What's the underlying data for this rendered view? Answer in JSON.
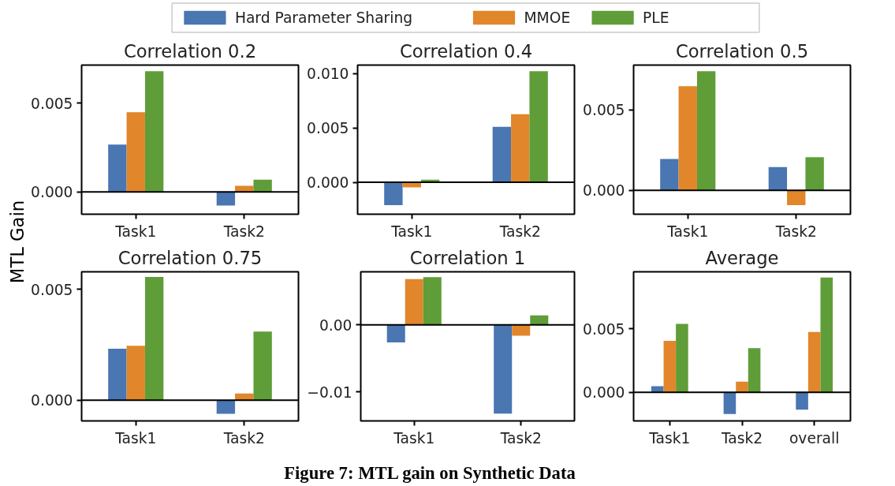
{
  "chart_data": [
    {
      "type": "bar",
      "title": "Correlation 0.2",
      "ylabel": "MTL Gain",
      "legend": "top",
      "annotations": [
        "Figure 7: MTL gain on Synthetic Data"
      ],
      "categories": [
        "Task1",
        "Task2"
      ],
      "ylim": [
        -0.00126,
        0.00714
      ],
      "yticks": [
        {
          "value": 0.0,
          "label": "0.000"
        },
        {
          "value": 0.005,
          "label": "0.005"
        }
      ],
      "ref_lines": [
        {
          "axis": "y",
          "value": 0,
          "color": "#000000"
        }
      ],
      "grid": false,
      "series": [
        {
          "name": "Hard Parameter Sharing",
          "color": "#4a76b2",
          "values": [
            0.00266,
            -0.00077
          ]
        },
        {
          "name": "MMOE",
          "color": "#e1862b",
          "values": [
            0.00448,
            0.00034
          ]
        },
        {
          "name": "PLE",
          "color": "#5f9d38",
          "values": [
            0.0068,
            0.00069
          ]
        }
      ]
    },
    {
      "type": "bar",
      "title": "Correlation 0.4",
      "categories": [
        "Task1",
        "Task2"
      ],
      "ylim": [
        -0.00293,
        0.01077
      ],
      "yticks": [
        {
          "value": 0.0,
          "label": "0.000"
        },
        {
          "value": 0.005,
          "label": "0.005"
        },
        {
          "value": 0.01,
          "label": "0.010"
        }
      ],
      "ref_lines": [
        {
          "axis": "y",
          "value": 0,
          "color": "#000000"
        }
      ],
      "grid": false,
      "series": [
        {
          "color": "#4a76b2",
          "values": [
            -0.0021,
            0.0051
          ]
        },
        {
          "color": "#e1862b",
          "values": [
            -0.00047,
            0.00625
          ]
        },
        {
          "color": "#5f9d38",
          "values": [
            0.00025,
            0.0102
          ]
        }
      ]
    },
    {
      "type": "bar",
      "title": "Correlation 0.5",
      "categories": [
        "Task1",
        "Task2"
      ],
      "ylim": [
        -0.00149,
        0.0078
      ],
      "yticks": [
        {
          "value": 0.0,
          "label": "0.000"
        },
        {
          "value": 0.005,
          "label": "0.005"
        }
      ],
      "ref_lines": [
        {
          "axis": "y",
          "value": 0,
          "color": "#000000"
        }
      ],
      "grid": false,
      "series": [
        {
          "color": "#4a76b2",
          "values": [
            0.00195,
            0.00145
          ]
        },
        {
          "color": "#e1862b",
          "values": [
            0.00649,
            -0.00093
          ]
        },
        {
          "color": "#5f9d38",
          "values": [
            0.00742,
            0.00206
          ]
        }
      ]
    },
    {
      "type": "bar",
      "title": "Correlation 0.75",
      "categories": [
        "Task1",
        "Task2"
      ],
      "ylim": [
        -0.00093,
        0.00579
      ],
      "yticks": [
        {
          "value": 0.0,
          "label": "0.000"
        },
        {
          "value": 0.005,
          "label": "0.005"
        }
      ],
      "ref_lines": [
        {
          "axis": "y",
          "value": 0,
          "color": "#000000"
        }
      ],
      "grid": false,
      "series": [
        {
          "color": "#4a76b2",
          "values": [
            0.00232,
            -0.00061
          ]
        },
        {
          "color": "#e1862b",
          "values": [
            0.00246,
            0.00031
          ]
        },
        {
          "color": "#5f9d38",
          "values": [
            0.00556,
            0.0031
          ]
        }
      ]
    },
    {
      "type": "bar",
      "title": "Correlation 1",
      "categories": [
        "Task1",
        "Task2"
      ],
      "ylim": [
        -0.0143,
        0.0079
      ],
      "yticks": [
        {
          "value": -0.01,
          "label": "−0.01"
        },
        {
          "value": 0.0,
          "label": "0.00"
        }
      ],
      "ref_lines": [
        {
          "axis": "y",
          "value": 0,
          "color": "#000000"
        }
      ],
      "grid": false,
      "series": [
        {
          "color": "#4a76b2",
          "values": [
            -0.0026,
            -0.0132
          ]
        },
        {
          "color": "#e1862b",
          "values": [
            0.0068,
            -0.0016
          ]
        },
        {
          "color": "#5f9d38",
          "values": [
            0.0071,
            0.0014
          ]
        }
      ]
    },
    {
      "type": "bar",
      "title": "Average",
      "categories": [
        "Task1",
        "Task2",
        "overall"
      ],
      "ylim": [
        -0.00226,
        0.0095
      ],
      "yticks": [
        {
          "value": 0.0,
          "label": "0.000"
        },
        {
          "value": 0.005,
          "label": "0.005"
        }
      ],
      "ref_lines": [
        {
          "axis": "y",
          "value": 0,
          "color": "#000000"
        }
      ],
      "grid": false,
      "series": [
        {
          "color": "#4a76b2",
          "values": [
            0.00048,
            -0.00171,
            -0.00138
          ]
        },
        {
          "color": "#e1862b",
          "values": [
            0.00405,
            0.00083,
            0.00476
          ]
        },
        {
          "color": "#5f9d38",
          "values": [
            0.0054,
            0.00348,
            0.00905
          ]
        }
      ]
    }
  ]
}
